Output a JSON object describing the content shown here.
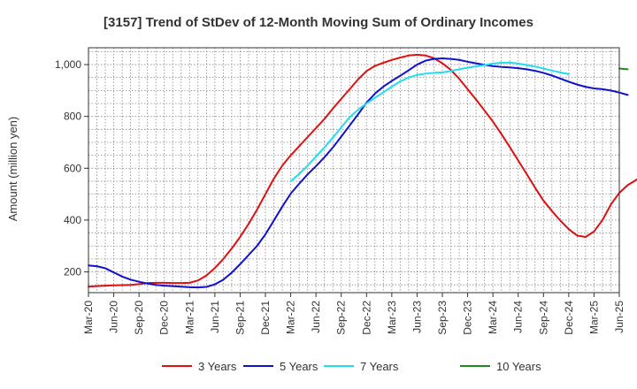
{
  "chart_data": {
    "type": "line",
    "title": "[3157]  Trend of StDev of 12-Month Moving Sum of Ordinary Incomes",
    "xlabel": "",
    "ylabel": "Amount (million yen)",
    "ylim": [
      120,
      1065
    ],
    "yticks": [
      200,
      400,
      600,
      800,
      1000
    ],
    "ytick_labels": [
      "200",
      "400",
      "600",
      "800",
      "1,000"
    ],
    "xtick_labels": [
      "Mar-20",
      "Jun-20",
      "Sep-20",
      "Dec-20",
      "Mar-21",
      "Jun-21",
      "Sep-21",
      "Dec-21",
      "Mar-22",
      "Jun-22",
      "Sep-22",
      "Dec-22",
      "Mar-23",
      "Jun-23",
      "Sep-23",
      "Dec-23",
      "Mar-24",
      "Jun-24",
      "Sep-24",
      "Dec-24",
      "Mar-25",
      "Jun-25"
    ],
    "x_start": "Mar-20",
    "grid": true,
    "legend_position": "bottom",
    "series": [
      {
        "name": "3 Years",
        "color": "#dd1111",
        "start_index": 0,
        "values": [
          143,
          145,
          147,
          148,
          149,
          150,
          153,
          157,
          158,
          158,
          157,
          157,
          158,
          167,
          186,
          215,
          250,
          290,
          335,
          385,
          440,
          500,
          560,
          610,
          650,
          685,
          720,
          755,
          790,
          830,
          868,
          905,
          943,
          975,
          995,
          1007,
          1018,
          1027,
          1035,
          1038,
          1035,
          1025,
          1005,
          980,
          945,
          905,
          865,
          823,
          780,
          732,
          682,
          630,
          578,
          525,
          475,
          435,
          398,
          365,
          340,
          335,
          356,
          400,
          460,
          505,
          535,
          555,
          575
        ]
      },
      {
        "name": "5 Years",
        "color": "#1111cc",
        "start_index": 0,
        "values": [
          225,
          222,
          214,
          198,
          182,
          170,
          162,
          155,
          150,
          147,
          145,
          143,
          141,
          140,
          142,
          152,
          170,
          197,
          230,
          265,
          300,
          345,
          398,
          452,
          502,
          540,
          576,
          608,
          642,
          680,
          722,
          765,
          808,
          853,
          888,
          915,
          937,
          957,
          978,
          1000,
          1015,
          1022,
          1024,
          1022,
          1018,
          1011,
          1005,
          999,
          994,
          991,
          989,
          986,
          982,
          976,
          968,
          958,
          946,
          934,
          923,
          914,
          908,
          905,
          900,
          892,
          883
        ]
      },
      {
        "name": "7 Years",
        "color": "#22ddee",
        "start_index": 24,
        "values": [
          550,
          578,
          610,
          645,
          680,
          718,
          758,
          797,
          826,
          850,
          872,
          893,
          915,
          935,
          950,
          960,
          965,
          968,
          970,
          975,
          982,
          988,
          993,
          998,
          1004,
          1007,
          1008,
          1004,
          998,
          992,
          985,
          977,
          970,
          963
        ]
      },
      {
        "name": "10 Years",
        "color": "#228822",
        "start_index": 63,
        "values": [
          985,
          982
        ]
      }
    ]
  }
}
